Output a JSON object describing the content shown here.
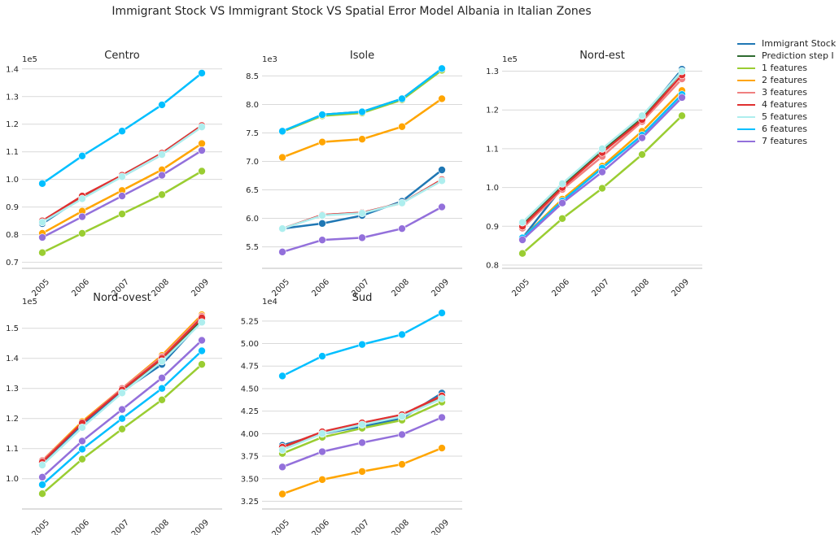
{
  "title": "Immigrant Stock VS Immigrant Stock VS Spatial Error Model Albania in Italian Zones",
  "legend": [
    {
      "name": "Immigrant Stock",
      "color": "#1f77b4"
    },
    {
      "name": "Prediction step I",
      "color": "#2e6b30"
    },
    {
      "name": "1 features",
      "color": "#9acd32"
    },
    {
      "name": "2 features",
      "color": "#ffa500"
    },
    {
      "name": "3 features",
      "color": "#f08080"
    },
    {
      "name": "4 features",
      "color": "#e03030"
    },
    {
      "name": "5 features",
      "color": "#aeeeee"
    },
    {
      "name": "6 features",
      "color": "#00bfff"
    },
    {
      "name": "7 features",
      "color": "#9370db"
    }
  ],
  "chart_data": [
    {
      "type": "line",
      "title": "Centro",
      "scale_label": "1e5",
      "categories": [
        "2005",
        "2006",
        "2007",
        "2008",
        "2009"
      ],
      "ylim": [
        0.69,
        1.42
      ],
      "yticks": [
        {
          "v": 0.7,
          "label": "0.7"
        },
        {
          "v": 0.8,
          "label": "0.8"
        },
        {
          "v": 0.9,
          "label": "0.9"
        },
        {
          "v": 1.0,
          "label": "1.0"
        },
        {
          "v": 1.1,
          "label": "1.1"
        },
        {
          "v": 1.2,
          "label": "1.2"
        },
        {
          "v": 1.3,
          "label": "1.3"
        },
        {
          "v": 1.4,
          "label": "1.4"
        }
      ],
      "series": [
        {
          "name": "Immigrant Stock",
          "values": [
            0.84,
            0.935,
            1.01,
            1.09,
            1.195
          ]
        },
        {
          "name": "Prediction step I",
          "values": [
            0.85,
            0.935,
            1.015,
            1.095,
            1.195
          ]
        },
        {
          "name": "1 features",
          "values": [
            0.735,
            0.805,
            0.875,
            0.945,
            1.03
          ]
        },
        {
          "name": "2 features",
          "values": [
            0.805,
            0.885,
            0.96,
            1.035,
            1.13
          ]
        },
        {
          "name": "3 features",
          "values": [
            0.85,
            0.94,
            1.015,
            1.095,
            1.195
          ]
        },
        {
          "name": "4 features",
          "values": [
            0.85,
            0.94,
            1.015,
            1.095,
            1.195
          ]
        },
        {
          "name": "5 features",
          "values": [
            0.845,
            0.93,
            1.01,
            1.09,
            1.19
          ]
        },
        {
          "name": "6 features",
          "values": [
            0.985,
            1.085,
            1.175,
            1.27,
            1.385
          ]
        },
        {
          "name": "7 features",
          "values": [
            0.79,
            0.865,
            0.94,
            1.015,
            1.105
          ]
        }
      ]
    },
    {
      "type": "line",
      "title": "Isole",
      "scale_label": "1e3",
      "categories": [
        "2005",
        "2006",
        "2007",
        "2008",
        "2009"
      ],
      "ylim": [
        5.18,
        8.72
      ],
      "yticks": [
        {
          "v": 5.5,
          "label": "5.5"
        },
        {
          "v": 6.0,
          "label": "6.0"
        },
        {
          "v": 6.5,
          "label": "6.5"
        },
        {
          "v": 7.0,
          "label": "7.0"
        },
        {
          "v": 7.5,
          "label": "7.5"
        },
        {
          "v": 8.0,
          "label": "8.0"
        },
        {
          "v": 8.5,
          "label": "8.5"
        }
      ],
      "series": [
        {
          "name": "Immigrant Stock",
          "values": [
            5.82,
            5.91,
            6.05,
            6.3,
            6.85
          ]
        },
        {
          "name": "Prediction step I",
          "values": [
            7.52,
            7.82,
            7.87,
            8.1,
            8.62
          ]
        },
        {
          "name": "1 features",
          "values": [
            7.52,
            7.8,
            7.85,
            8.08,
            8.6
          ]
        },
        {
          "name": "2 features",
          "values": [
            7.07,
            7.34,
            7.39,
            7.61,
            8.1
          ]
        },
        {
          "name": "3 features",
          "values": [
            5.82,
            6.06,
            6.1,
            6.27,
            6.68
          ]
        },
        {
          "name": "4 features",
          "values": [
            5.82,
            6.06,
            6.1,
            6.27,
            6.68
          ]
        },
        {
          "name": "5 features",
          "values": [
            5.82,
            6.05,
            6.09,
            6.27,
            6.66
          ]
        },
        {
          "name": "6 features",
          "values": [
            7.53,
            7.82,
            7.87,
            8.1,
            8.63
          ]
        },
        {
          "name": "7 features",
          "values": [
            5.41,
            5.62,
            5.66,
            5.82,
            6.2
          ]
        }
      ]
    },
    {
      "type": "line",
      "title": "Nord-est",
      "scale_label": "1e5",
      "categories": [
        "2005",
        "2006",
        "2007",
        "2008",
        "2009"
      ],
      "ylim": [
        0.8,
        1.32
      ],
      "yticks": [
        {
          "v": 0.8,
          "label": "0.8"
        },
        {
          "v": 0.9,
          "label": "0.9"
        },
        {
          "v": 1.0,
          "label": "1.0"
        },
        {
          "v": 1.1,
          "label": "1.1"
        },
        {
          "v": 1.2,
          "label": "1.2"
        },
        {
          "v": 1.3,
          "label": "1.3"
        }
      ],
      "series": [
        {
          "name": "Immigrant Stock",
          "values": [
            0.87,
            1.0,
            1.095,
            1.18,
            1.305
          ]
        },
        {
          "name": "Prediction step I",
          "values": [
            0.905,
            1.005,
            1.095,
            1.18,
            1.3
          ]
        },
        {
          "name": "1 features",
          "values": [
            0.83,
            0.92,
            0.998,
            1.085,
            1.185
          ]
        },
        {
          "name": "2 features",
          "values": [
            0.87,
            0.97,
            1.055,
            1.145,
            1.25
          ]
        },
        {
          "name": "3 features",
          "values": [
            0.895,
            0.995,
            1.08,
            1.17,
            1.28
          ]
        },
        {
          "name": "4 features",
          "values": [
            0.9,
            1.0,
            1.09,
            1.175,
            1.29
          ]
        },
        {
          "name": "5 features",
          "values": [
            0.91,
            1.01,
            1.1,
            1.185,
            1.3
          ]
        },
        {
          "name": "6 features",
          "values": [
            0.87,
            0.965,
            1.05,
            1.135,
            1.24
          ]
        },
        {
          "name": "7 features",
          "values": [
            0.865,
            0.96,
            1.04,
            1.128,
            1.232
          ]
        }
      ]
    },
    {
      "type": "line",
      "title": "Nord-ovest",
      "scale_label": "1e5",
      "categories": [
        "2005",
        "2006",
        "2007",
        "2008",
        "2009"
      ],
      "ylim": [
        0.91,
        1.575
      ],
      "yticks": [
        {
          "v": 1.0,
          "label": "1.0"
        },
        {
          "v": 1.1,
          "label": "1.1"
        },
        {
          "v": 1.2,
          "label": "1.2"
        },
        {
          "v": 1.3,
          "label": "1.3"
        },
        {
          "v": 1.4,
          "label": "1.4"
        },
        {
          "v": 1.5,
          "label": "1.5"
        }
      ],
      "series": [
        {
          "name": "Immigrant Stock",
          "values": [
            1.05,
            1.18,
            1.29,
            1.38,
            1.525
          ]
        },
        {
          "name": "Prediction step I",
          "values": [
            1.055,
            1.185,
            1.295,
            1.395,
            1.53
          ]
        },
        {
          "name": "1 features",
          "values": [
            0.95,
            1.065,
            1.165,
            1.262,
            1.38
          ]
        },
        {
          "name": "2 features",
          "values": [
            1.06,
            1.19,
            1.3,
            1.41,
            1.545
          ]
        },
        {
          "name": "3 features",
          "values": [
            1.06,
            1.185,
            1.3,
            1.405,
            1.54
          ]
        },
        {
          "name": "4 features",
          "values": [
            1.055,
            1.185,
            1.295,
            1.4,
            1.535
          ]
        },
        {
          "name": "5 features",
          "values": [
            1.045,
            1.17,
            1.285,
            1.39,
            1.52
          ]
        },
        {
          "name": "6 features",
          "values": [
            0.98,
            1.098,
            1.2,
            1.3,
            1.425
          ]
        },
        {
          "name": "7 features",
          "values": [
            1.005,
            1.125,
            1.23,
            1.335,
            1.46
          ]
        }
      ]
    },
    {
      "type": "line",
      "title": "Sud",
      "scale_label": "1e4",
      "categories": [
        "2005",
        "2006",
        "2007",
        "2008",
        "2009"
      ],
      "ylim": [
        3.2,
        5.42
      ],
      "yticks": [
        {
          "v": 3.25,
          "label": "3.25"
        },
        {
          "v": 3.5,
          "label": "3.50"
        },
        {
          "v": 3.75,
          "label": "3.75"
        },
        {
          "v": 4.0,
          "label": "4.00"
        },
        {
          "v": 4.25,
          "label": "4.25"
        },
        {
          "v": 4.5,
          "label": "4.50"
        },
        {
          "v": 4.75,
          "label": "4.75"
        },
        {
          "v": 5.0,
          "label": "5.00"
        },
        {
          "v": 5.25,
          "label": "5.25"
        }
      ],
      "series": [
        {
          "name": "Immigrant Stock",
          "values": [
            3.87,
            4.0,
            4.08,
            4.17,
            4.45
          ]
        },
        {
          "name": "Prediction step I",
          "values": [
            3.85,
            4.01,
            4.11,
            4.2,
            4.4
          ]
        },
        {
          "name": "1 features",
          "values": [
            3.78,
            3.96,
            4.06,
            4.15,
            4.35
          ]
        },
        {
          "name": "2 features",
          "values": [
            3.33,
            3.49,
            3.58,
            3.66,
            3.84
          ]
        },
        {
          "name": "3 features",
          "values": [
            3.85,
            4.02,
            4.12,
            4.21,
            4.42
          ]
        },
        {
          "name": "4 features",
          "values": [
            3.85,
            4.02,
            4.12,
            4.21,
            4.42
          ]
        },
        {
          "name": "5 features",
          "values": [
            3.82,
            4.0,
            4.1,
            4.19,
            4.39
          ]
        },
        {
          "name": "6 features",
          "values": [
            4.64,
            4.86,
            4.99,
            5.1,
            5.34
          ]
        },
        {
          "name": "7 features",
          "values": [
            3.63,
            3.8,
            3.9,
            3.99,
            4.18
          ]
        }
      ]
    }
  ]
}
